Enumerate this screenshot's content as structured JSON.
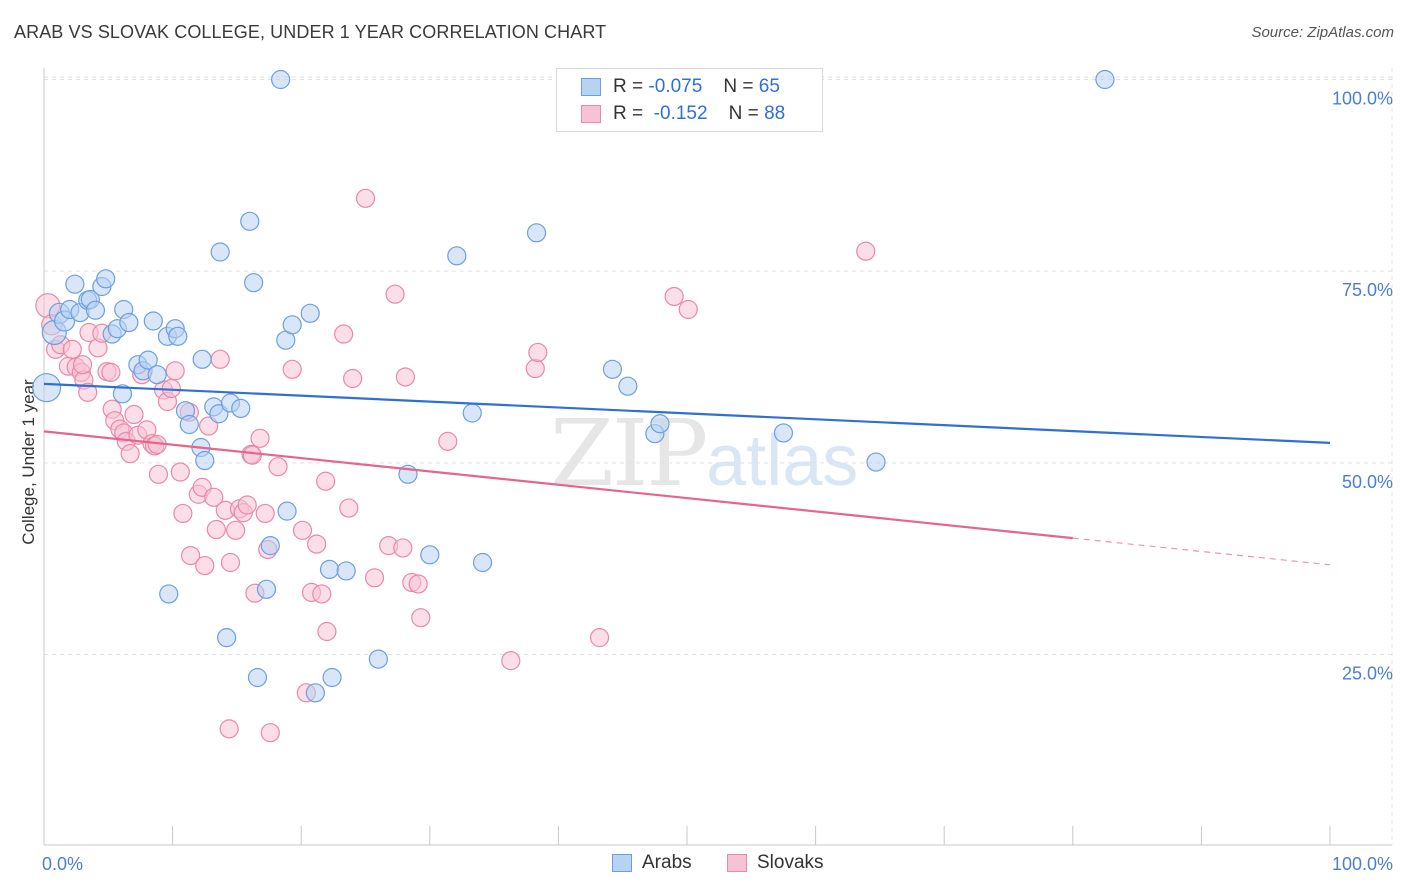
{
  "title": "ARAB VS SLOVAK COLLEGE, UNDER 1 YEAR CORRELATION CHART",
  "source": "Source: ZipAtlas.com",
  "watermark": {
    "part1": "ZIP",
    "part2": "atlas"
  },
  "legend": {
    "rows": [
      {
        "r_label": "R =",
        "r_value": "-0.075",
        "n_label": "N =",
        "n_value": "65"
      },
      {
        "r_label": "R =",
        "r_value": "-0.152",
        "n_label": "N =",
        "n_value": "88"
      }
    ]
  },
  "bottom_legend": {
    "arabs": "Arabs",
    "slovaks": "Slovaks"
  },
  "colors": {
    "arabs_fill": "#b8d2f2",
    "arabs_stroke": "#6d9fe0",
    "arabs_line": "#2f6fd6",
    "slovaks_fill": "#f7c3d4",
    "slovaks_stroke": "#e889aa",
    "slovaks_line": "#e3668f",
    "axis_text": "#4a7fd0",
    "grid": "#e0e0e0"
  },
  "chart_data": {
    "type": "scatter",
    "title": "ARAB VS SLOVAK COLLEGE, UNDER 1 YEAR CORRELATION CHART",
    "xlabel": "",
    "ylabel": "College, Under 1 year",
    "xlim": [
      0,
      100
    ],
    "ylim": [
      0,
      105
    ],
    "x_tick_labels": [
      "0.0%",
      "100.0%"
    ],
    "y_ticks": [
      25,
      50,
      75,
      100
    ],
    "y_tick_labels": [
      "25.0%",
      "50.0%",
      "75.0%",
      "100.0%"
    ],
    "grid": true,
    "series": [
      {
        "name": "Arabs",
        "r": -0.075,
        "n": 65,
        "trend": {
          "x0": 0,
          "y0": 60.3,
          "x1": 100,
          "y1": 52.6,
          "solid_to": 100
        },
        "points": [
          [
            0.2,
            59.8,
            14
          ],
          [
            0.8,
            67.0,
            12
          ],
          [
            1.2,
            69.5,
            10
          ],
          [
            1.6,
            68.5,
            10
          ],
          [
            2.0,
            70.0,
            9
          ],
          [
            2.4,
            73.3,
            9
          ],
          [
            2.8,
            69.6,
            9
          ],
          [
            3.4,
            71.2,
            9
          ],
          [
            3.6,
            71.3,
            9
          ],
          [
            4.0,
            69.9,
            9
          ],
          [
            4.5,
            73.0,
            9
          ],
          [
            4.8,
            74.0,
            9
          ],
          [
            5.3,
            66.8,
            9
          ],
          [
            5.7,
            67.5,
            9
          ],
          [
            6.2,
            70.0,
            9
          ],
          [
            6.6,
            68.3,
            9
          ],
          [
            6.1,
            59.0,
            9
          ],
          [
            7.3,
            62.8,
            9
          ],
          [
            7.7,
            62.0,
            9
          ],
          [
            8.1,
            63.4,
            9
          ],
          [
            8.5,
            68.5,
            9
          ],
          [
            8.8,
            61.5,
            9
          ],
          [
            9.6,
            66.5,
            9
          ],
          [
            10.2,
            67.5,
            9
          ],
          [
            10.4,
            66.5,
            9
          ],
          [
            11.0,
            56.8,
            9
          ],
          [
            11.3,
            55.0,
            9
          ],
          [
            12.2,
            52.0,
            9
          ],
          [
            12.5,
            50.3,
            9
          ],
          [
            12.3,
            63.5,
            9
          ],
          [
            13.2,
            57.3,
            9
          ],
          [
            13.6,
            56.4,
            9
          ],
          [
            14.5,
            57.8,
            9
          ],
          [
            15.3,
            57.1,
            9
          ],
          [
            13.7,
            77.5,
            9
          ],
          [
            16.0,
            81.5,
            9
          ],
          [
            16.3,
            73.5,
            9
          ],
          [
            18.4,
            100.0,
            9
          ],
          [
            18.8,
            66.0,
            9
          ],
          [
            19.3,
            68.0,
            9
          ],
          [
            20.7,
            69.5,
            9
          ],
          [
            17.3,
            33.5,
            9
          ],
          [
            17.6,
            39.2,
            9
          ],
          [
            18.9,
            43.7,
            9
          ],
          [
            21.1,
            20.0,
            9
          ],
          [
            22.2,
            36.1,
            9
          ],
          [
            22.4,
            22.0,
            9
          ],
          [
            23.5,
            35.9,
            9
          ],
          [
            26.0,
            24.4,
            9
          ],
          [
            28.3,
            48.5,
            9
          ],
          [
            30.0,
            38.0,
            9
          ],
          [
            32.1,
            77.0,
            9
          ],
          [
            33.3,
            56.5,
            9
          ],
          [
            34.1,
            37.0,
            9
          ],
          [
            38.3,
            80.0,
            9
          ],
          [
            44.2,
            62.2,
            9
          ],
          [
            45.4,
            60.0,
            9
          ],
          [
            47.5,
            53.8,
            9
          ],
          [
            47.9,
            55.1,
            9
          ],
          [
            57.5,
            53.9,
            9
          ],
          [
            64.7,
            50.1,
            9
          ],
          [
            82.5,
            100.0,
            9
          ],
          [
            9.7,
            32.9,
            9
          ],
          [
            14.2,
            27.2,
            9
          ],
          [
            16.6,
            22.0,
            9
          ]
        ]
      },
      {
        "name": "Slovaks",
        "r": -0.152,
        "n": 88,
        "trend": {
          "x0": 0,
          "y0": 54.1,
          "x1": 100,
          "y1": 36.7,
          "solid_to": 80
        },
        "points": [
          [
            0.3,
            70.5,
            12
          ],
          [
            0.6,
            68.0,
            10
          ],
          [
            0.9,
            64.8,
            9
          ],
          [
            1.3,
            65.4,
            9
          ],
          [
            1.9,
            62.6,
            9
          ],
          [
            2.2,
            64.8,
            9
          ],
          [
            2.5,
            62.5,
            9
          ],
          [
            2.9,
            61.8,
            9
          ],
          [
            3.1,
            60.8,
            9
          ],
          [
            3.4,
            59.2,
            9
          ],
          [
            3.5,
            67.0,
            9
          ],
          [
            4.2,
            65.0,
            9
          ],
          [
            4.5,
            66.9,
            9
          ],
          [
            4.9,
            61.9,
            9
          ],
          [
            5.2,
            61.8,
            9
          ],
          [
            5.3,
            57.0,
            9
          ],
          [
            5.5,
            55.5,
            9
          ],
          [
            5.9,
            54.4,
            9
          ],
          [
            6.2,
            53.9,
            9
          ],
          [
            6.4,
            52.8,
            9
          ],
          [
            6.7,
            51.2,
            9
          ],
          [
            7.0,
            56.3,
            9
          ],
          [
            7.3,
            53.6,
            9
          ],
          [
            7.6,
            61.5,
            9
          ],
          [
            8.0,
            54.3,
            9
          ],
          [
            8.4,
            52.5,
            9
          ],
          [
            8.6,
            52.2,
            9
          ],
          [
            8.9,
            48.5,
            9
          ],
          [
            9.3,
            59.5,
            9
          ],
          [
            9.6,
            58.0,
            9
          ],
          [
            9.9,
            59.7,
            9
          ],
          [
            10.2,
            62.0,
            9
          ],
          [
            10.6,
            48.8,
            9
          ],
          [
            10.8,
            43.4,
            9
          ],
          [
            11.3,
            56.6,
            9
          ],
          [
            11.4,
            37.9,
            9
          ],
          [
            12.0,
            45.9,
            9
          ],
          [
            12.3,
            46.8,
            9
          ],
          [
            12.5,
            36.6,
            9
          ],
          [
            12.8,
            54.8,
            9
          ],
          [
            13.2,
            45.5,
            9
          ],
          [
            13.4,
            41.3,
            9
          ],
          [
            13.7,
            63.5,
            9
          ],
          [
            14.1,
            43.8,
            9
          ],
          [
            14.5,
            37.0,
            9
          ],
          [
            14.9,
            41.2,
            9
          ],
          [
            15.2,
            44.0,
            9
          ],
          [
            15.5,
            43.5,
            9
          ],
          [
            15.8,
            44.5,
            9
          ],
          [
            16.1,
            51.1,
            9
          ],
          [
            16.4,
            33.0,
            9
          ],
          [
            16.8,
            53.2,
            9
          ],
          [
            17.2,
            43.4,
            9
          ],
          [
            17.4,
            38.7,
            9
          ],
          [
            18.2,
            49.5,
            9
          ],
          [
            19.3,
            62.2,
            9
          ],
          [
            20.1,
            41.2,
            9
          ],
          [
            20.4,
            20.0,
            9
          ],
          [
            20.8,
            33.1,
            9
          ],
          [
            21.2,
            39.4,
            9
          ],
          [
            21.6,
            32.9,
            9
          ],
          [
            21.9,
            47.6,
            9
          ],
          [
            22.0,
            28.0,
            9
          ],
          [
            23.3,
            66.8,
            9
          ],
          [
            23.7,
            44.1,
            9
          ],
          [
            24.0,
            61.0,
            9
          ],
          [
            25.0,
            84.5,
            9
          ],
          [
            25.7,
            35.0,
            9
          ],
          [
            26.8,
            39.2,
            9
          ],
          [
            27.3,
            72.0,
            9
          ],
          [
            27.9,
            38.9,
            9
          ],
          [
            28.1,
            61.2,
            9
          ],
          [
            28.6,
            34.4,
            9
          ],
          [
            29.1,
            34.2,
            9
          ],
          [
            29.3,
            29.8,
            9
          ],
          [
            31.4,
            52.8,
            9
          ],
          [
            36.3,
            24.2,
            9
          ],
          [
            38.2,
            62.3,
            9
          ],
          [
            38.4,
            64.4,
            9
          ],
          [
            43.2,
            27.2,
            9
          ],
          [
            49.0,
            71.7,
            9
          ],
          [
            50.1,
            70.0,
            9
          ],
          [
            63.9,
            77.6,
            9
          ],
          [
            14.4,
            15.3,
            9
          ],
          [
            17.6,
            14.8,
            9
          ],
          [
            3.0,
            62.8,
            9
          ],
          [
            8.8,
            52.4,
            9
          ],
          [
            16.2,
            51.0,
            9
          ]
        ]
      }
    ]
  }
}
